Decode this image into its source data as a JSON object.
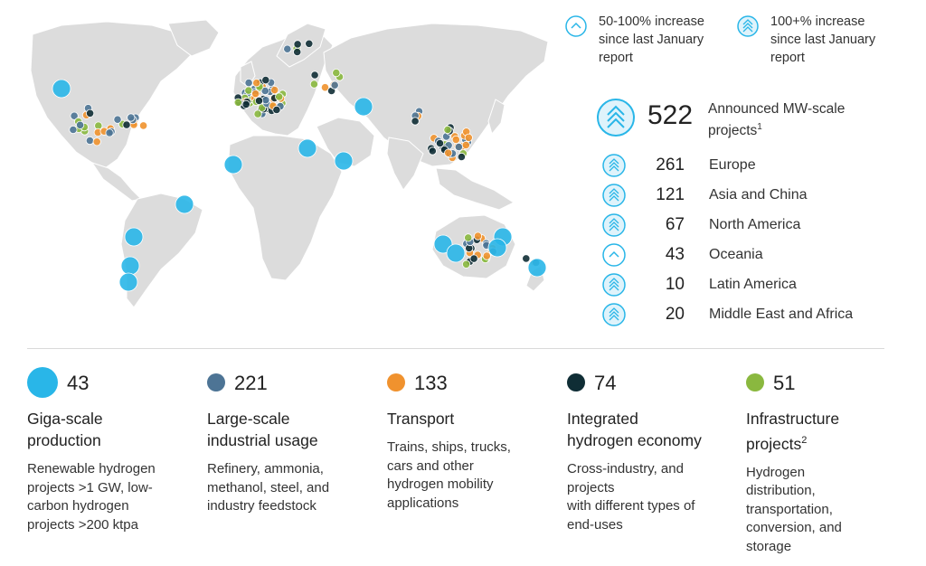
{
  "legend": {
    "medium_increase": [
      "50-100% increase",
      "since last January",
      "report"
    ],
    "high_increase": [
      "100+% increase",
      "since last January",
      "report"
    ]
  },
  "total": {
    "count": "522",
    "label_line1": "Announced MW-scale",
    "label_line2": "projects",
    "footnote": "1"
  },
  "regions": [
    {
      "count": "261",
      "name": "Europe",
      "growth": "high"
    },
    {
      "count": "121",
      "name": "Asia and China",
      "growth": "high"
    },
    {
      "count": "67",
      "name": "North America",
      "growth": "high"
    },
    {
      "count": "43",
      "name": "Oceania",
      "growth": "medium"
    },
    {
      "count": "10",
      "name": "Latin America",
      "growth": "high"
    },
    {
      "count": "20",
      "name": "Middle East and Africa",
      "growth": "high"
    }
  ],
  "categories": [
    {
      "count": "43",
      "title": [
        "Giga-scale",
        "production"
      ],
      "footnote": "",
      "color": "#29b6e8",
      "description": [
        "Renewable hydrogen",
        "projects >1 GW, low-",
        "carbon hydrogen",
        "projects >200 ktpa"
      ]
    },
    {
      "count": "221",
      "title": [
        "Large-scale",
        "industrial usage"
      ],
      "footnote": "",
      "color": "#4d7495",
      "description": [
        "Refinery, ammonia,",
        "methanol, steel, and",
        "industry feedstock"
      ]
    },
    {
      "count": "133",
      "title": [
        "Transport"
      ],
      "footnote": "",
      "color": "#f0922e",
      "description": [
        "Trains, ships, trucks,",
        "cars and other",
        "hydrogen mobility",
        "applications"
      ]
    },
    {
      "count": "74",
      "title": [
        "Integrated",
        "hydrogen economy"
      ],
      "footnote": "",
      "color": "#0f2d35",
      "description": [
        "Cross-industry, and",
        "projects",
        "with different types of",
        "end-uses"
      ]
    },
    {
      "count": "51",
      "title": [
        "Infrastructure",
        "projects"
      ],
      "footnote": "2",
      "color": "#8ab83f",
      "description": [
        "Hydrogen",
        "distribution,",
        "transportation,",
        "conversion, and",
        "storage"
      ]
    }
  ],
  "colors": {
    "accent_ring": "#29b6e8",
    "land": "#dcdcdc",
    "border": "#ffffff"
  },
  "icons": {
    "medium_increase": "single-chevron-circle-icon",
    "high_increase": "triple-chevron-circle-icon"
  }
}
